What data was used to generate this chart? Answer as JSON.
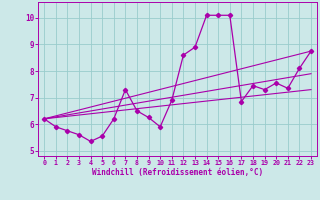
{
  "xlabel": "Windchill (Refroidissement éolien,°C)",
  "background_color": "#cce8e8",
  "line_color": "#aa00aa",
  "grid_color": "#99cccc",
  "xlim": [
    -0.5,
    23.5
  ],
  "ylim": [
    4.8,
    10.6
  ],
  "yticks": [
    5,
    6,
    7,
    8,
    9,
    10
  ],
  "xticks": [
    0,
    1,
    2,
    3,
    4,
    5,
    6,
    7,
    8,
    9,
    10,
    11,
    12,
    13,
    14,
    15,
    16,
    17,
    18,
    19,
    20,
    21,
    22,
    23
  ],
  "main_line": {
    "x": [
      0,
      1,
      2,
      3,
      4,
      5,
      6,
      7,
      8,
      9,
      10,
      11,
      12,
      13,
      14,
      15,
      16,
      17,
      18,
      19,
      20,
      21,
      22,
      23
    ],
    "y": [
      6.2,
      5.9,
      5.75,
      5.6,
      5.35,
      5.55,
      6.2,
      7.3,
      6.5,
      6.25,
      5.9,
      6.9,
      8.6,
      8.9,
      10.1,
      10.1,
      10.1,
      6.85,
      7.45,
      7.3,
      7.55,
      7.35,
      8.1,
      8.75
    ]
  },
  "trend_lines": [
    {
      "x": [
        0,
        23
      ],
      "y": [
        6.2,
        8.75
      ]
    },
    {
      "x": [
        0,
        23
      ],
      "y": [
        6.2,
        7.9
      ]
    },
    {
      "x": [
        0,
        23
      ],
      "y": [
        6.2,
        7.3
      ]
    }
  ]
}
